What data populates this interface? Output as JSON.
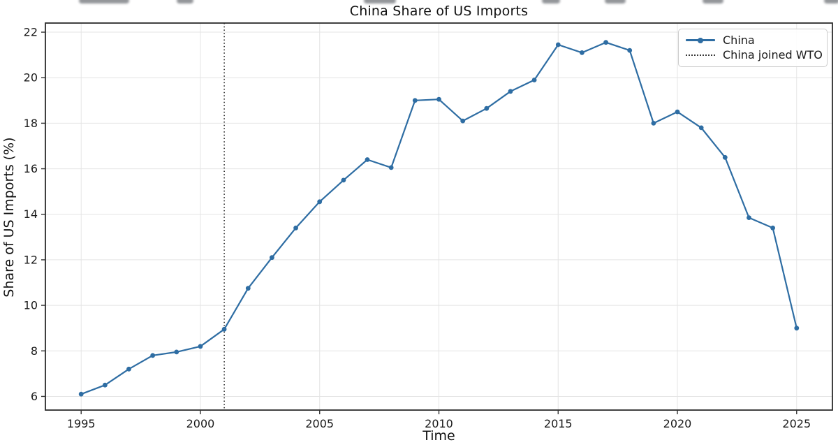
{
  "chart_data": {
    "type": "line",
    "title": "China Share of US Imports",
    "xlabel": "Time",
    "ylabel": "Share of US Imports (%)",
    "x": [
      1995,
      1996,
      1997,
      1998,
      1999,
      2000,
      2001,
      2002,
      2003,
      2004,
      2005,
      2006,
      2007,
      2008,
      2009,
      2010,
      2011,
      2012,
      2013,
      2014,
      2015,
      2016,
      2017,
      2018,
      2019,
      2020,
      2021,
      2022,
      2023,
      2024,
      2025
    ],
    "series": [
      {
        "name": "China",
        "color": "#2e6da3",
        "marker": "circle",
        "values": [
          6.1,
          6.5,
          7.2,
          7.8,
          7.95,
          8.2,
          8.95,
          10.75,
          12.1,
          13.4,
          14.55,
          15.5,
          16.4,
          16.05,
          19.0,
          19.05,
          18.1,
          18.65,
          19.4,
          19.9,
          21.45,
          21.1,
          21.55,
          21.2,
          18.0,
          18.5,
          17.8,
          16.5,
          13.85,
          13.4,
          9.0
        ]
      }
    ],
    "annotations": [
      {
        "type": "vline",
        "x": 2001,
        "label": "China joined WTO",
        "style": "dotted",
        "color": "#2a2a2a"
      }
    ],
    "xlim": [
      1993.5,
      2026.5
    ],
    "ylim": [
      5.4,
      22.4
    ],
    "xticks": [
      1995,
      2000,
      2005,
      2010,
      2015,
      2020,
      2025
    ],
    "yticks": [
      6,
      8,
      10,
      12,
      14,
      16,
      18,
      20,
      22
    ],
    "grid": true,
    "legend_position": "upper right"
  },
  "legend": {
    "entries": [
      {
        "label": "China",
        "type": "line-marker",
        "color": "#2e6da3"
      },
      {
        "label": "China joined WTO",
        "type": "dotted",
        "color": "#3a3a3a"
      }
    ]
  }
}
